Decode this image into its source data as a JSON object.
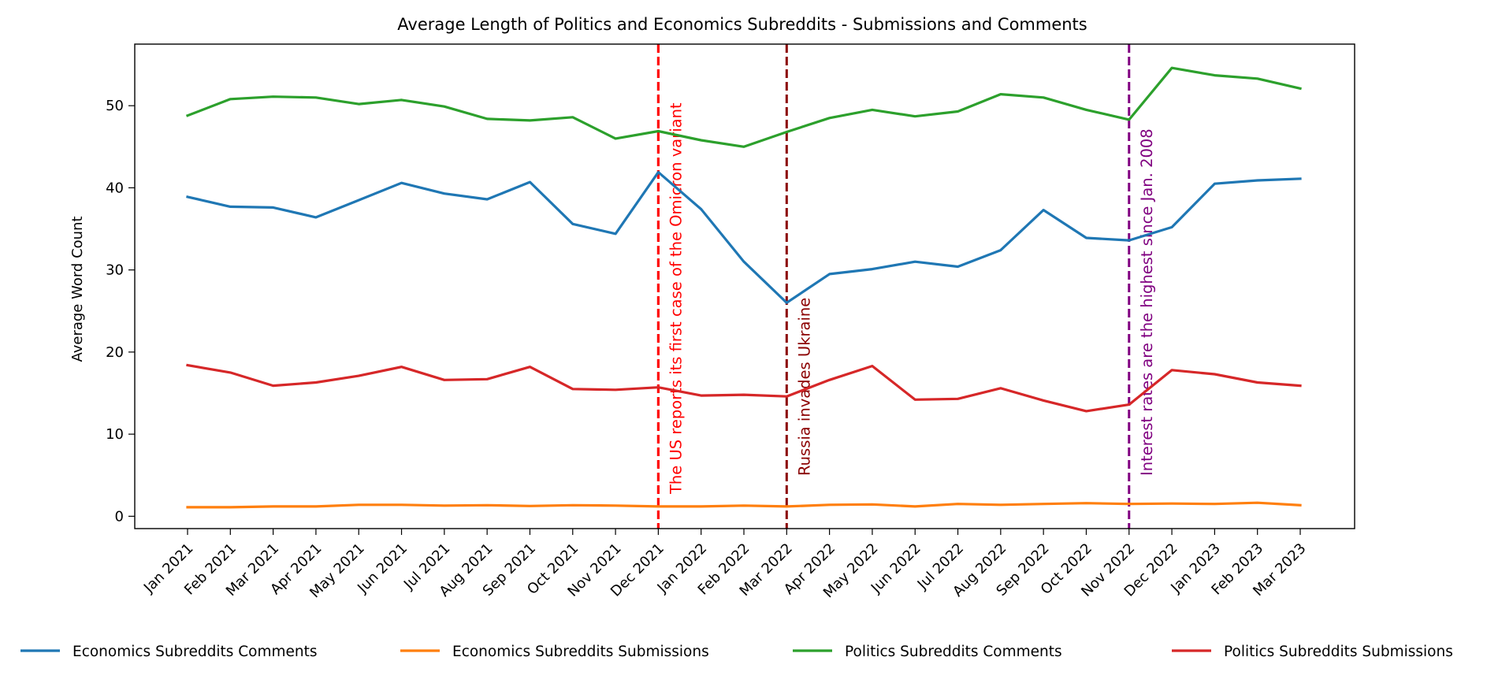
{
  "chart_data": {
    "type": "line",
    "title": "Average Length of Politics and Economics Subreddits - Submissions and Comments",
    "xlabel": "",
    "ylabel": "Average Word Count",
    "ylim": [
      -1.5,
      57.5
    ],
    "yticks": [
      0,
      10,
      20,
      30,
      40,
      50
    ],
    "grid": false,
    "legend_position": "bottom",
    "categories": [
      "Jan 2021",
      "Feb 2021",
      "Mar 2021",
      "Apr 2021",
      "May 2021",
      "Jun 2021",
      "Jul 2021",
      "Aug 2021",
      "Sep 2021",
      "Oct 2021",
      "Nov 2021",
      "Dec 2021",
      "Jan 2022",
      "Feb 2022",
      "Mar 2022",
      "Apr 2022",
      "May 2022",
      "Jun 2022",
      "Jul 2022",
      "Aug 2022",
      "Sep 2022",
      "Oct 2022",
      "Nov 2022",
      "Dec 2022",
      "Jan 2023",
      "Feb 2023",
      "Mar 2023"
    ],
    "series": [
      {
        "name": "Economics Subreddits Comments",
        "color": "#1f77b4",
        "values": [
          38.9,
          37.7,
          37.6,
          36.4,
          38.5,
          40.6,
          39.3,
          38.6,
          40.7,
          35.6,
          34.4,
          41.9,
          37.4,
          31.0,
          26.0,
          29.5,
          30.1,
          31.0,
          30.4,
          32.4,
          37.3,
          33.9,
          33.6,
          35.2,
          40.5,
          40.9,
          41.1
        ]
      },
      {
        "name": "Economics Subreddits Submissions",
        "color": "#ff7f0e",
        "values": [
          1.1,
          1.1,
          1.2,
          1.2,
          1.4,
          1.4,
          1.3,
          1.35,
          1.25,
          1.35,
          1.3,
          1.2,
          1.2,
          1.3,
          1.2,
          1.4,
          1.45,
          1.2,
          1.5,
          1.4,
          1.5,
          1.6,
          1.5,
          1.55,
          1.5,
          1.65,
          1.35
        ]
      },
      {
        "name": "Politics Subreddits Comments",
        "color": "#2ca02c",
        "values": [
          48.8,
          50.8,
          51.1,
          51.0,
          50.2,
          50.7,
          49.9,
          48.4,
          48.2,
          48.6,
          46.0,
          46.9,
          45.8,
          45.0,
          46.8,
          48.5,
          49.5,
          48.7,
          49.3,
          51.4,
          51.0,
          49.5,
          48.3,
          54.6,
          53.7,
          53.3,
          52.1
        ]
      },
      {
        "name": "Politics Subreddits Submissions",
        "color": "#d62728",
        "values": [
          18.4,
          17.5,
          15.9,
          16.3,
          17.1,
          18.2,
          16.6,
          16.7,
          18.2,
          15.5,
          15.4,
          15.7,
          14.7,
          14.8,
          14.6,
          16.6,
          18.3,
          14.2,
          14.3,
          15.6,
          14.1,
          12.8,
          13.6,
          17.8,
          17.3,
          16.3,
          15.9
        ]
      }
    ],
    "events": [
      {
        "category": "Dec 2021",
        "label": "The US reports its first case of the Omicron variant",
        "color": "#ff0000"
      },
      {
        "category": "Mar 2022",
        "label": "Russia invades Ukraine",
        "color": "#8b0000"
      },
      {
        "category": "Nov 2022",
        "label": "Interest rates are the highest since Jan. 2008",
        "color": "#800080"
      }
    ]
  }
}
